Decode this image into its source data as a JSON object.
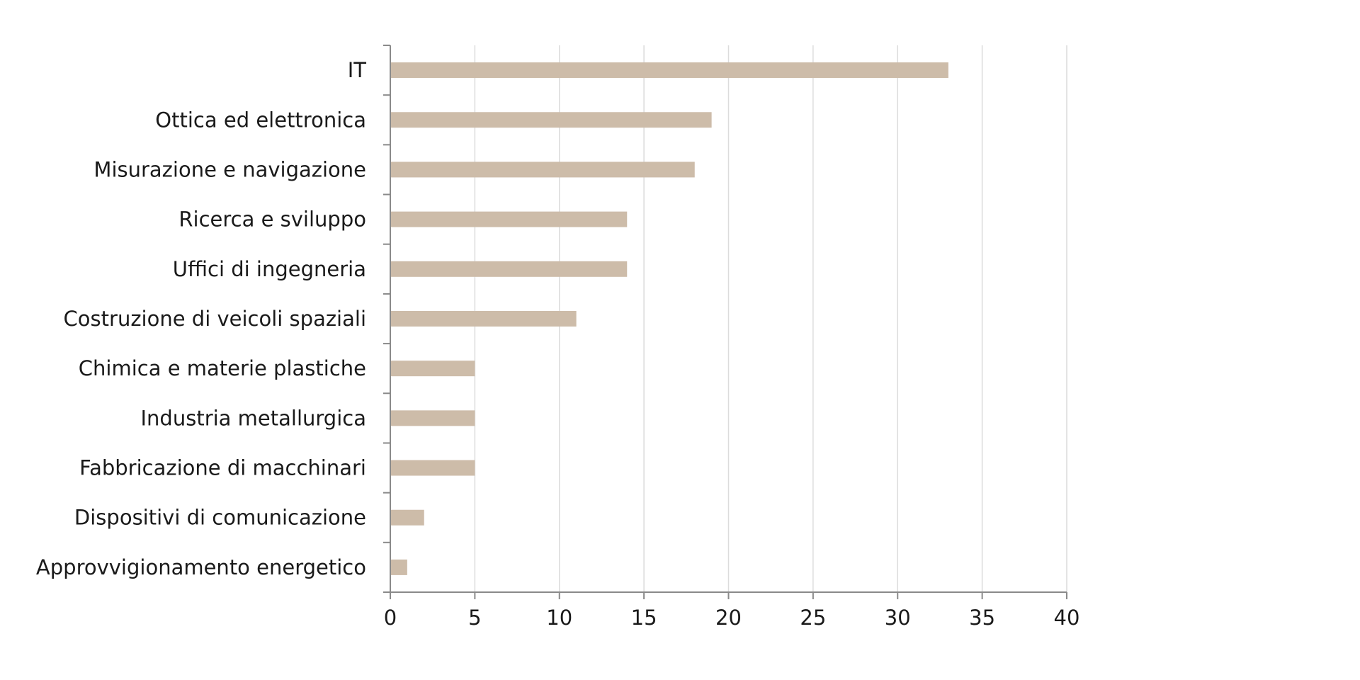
{
  "chart_data": {
    "type": "bar",
    "orientation": "horizontal",
    "title": "",
    "xlabel": "",
    "ylabel": "",
    "categories": [
      "IT",
      "Ottica ed elettronica",
      "Misurazione e navigazione",
      "Ricerca e sviluppo",
      "Uffici di ingegneria",
      "Costruzione di veicoli spaziali",
      "Chimica e materie plastiche",
      "Industria metallurgica",
      "Fabbricazione di macchinari",
      "Dispositivi di comunicazione",
      "Approvvigionamento energetico"
    ],
    "values": [
      33,
      19,
      18,
      14,
      14,
      11,
      5,
      5,
      5,
      2,
      1
    ],
    "xlim": [
      0,
      40
    ],
    "x_ticks": [
      0,
      5,
      10,
      15,
      20,
      25,
      30,
      35,
      40
    ],
    "x_tick_labels": [
      "0",
      "5",
      "10",
      "15",
      "20",
      "25",
      "30",
      "35",
      "40"
    ],
    "grid": "vertical",
    "bar_color": "#cdbca9",
    "legend": "none"
  }
}
